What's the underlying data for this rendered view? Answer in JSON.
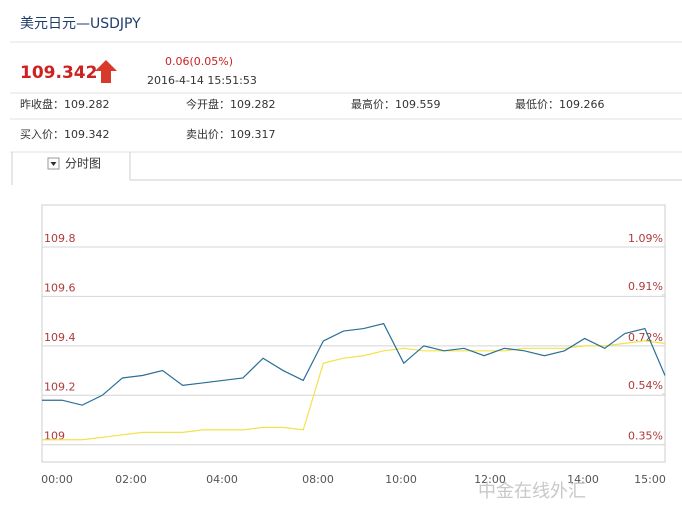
{
  "header": {
    "title": "美元日元—USDJPY",
    "price": "109.342",
    "change": "0.06(0.05%)",
    "time": "2016-4-14 15:51:53"
  },
  "stats": [
    {
      "label": "昨收盘：",
      "value": "109.282"
    },
    {
      "label": "今开盘：",
      "value": "109.282"
    },
    {
      "label": "最高价：",
      "value": "109.559"
    },
    {
      "label": "最低价：",
      "value": "109.266"
    },
    {
      "label": "买入价：",
      "value": "109.342"
    },
    {
      "label": "卖出价：",
      "value": "109.317"
    }
  ],
  "tab": "分时图",
  "watermark": "中金在线外汇",
  "chart_data": {
    "type": "line",
    "x_labels": [
      "00:00",
      "02:00",
      "04:00",
      "08:00",
      "10:00",
      "12:00",
      "14:00",
      "15:00"
    ],
    "ylim": [
      108.93,
      109.97
    ],
    "yticks": [
      109,
      109.2,
      109.4,
      109.6,
      109.8
    ],
    "y2lim": [
      0.285,
      1.247
    ],
    "y2ticks": [
      {
        "value": 1.09,
        "label": "1.09%"
      },
      {
        "value": 0.91,
        "label": "0.91%"
      },
      {
        "value": 0.72,
        "label": "0.72%"
      },
      {
        "value": 0.54,
        "label": "0.54%"
      },
      {
        "value": 0.35,
        "label": "0.35%"
      }
    ],
    "grid": true,
    "series": [
      {
        "color": "#2a6f97",
        "values": [
          109.18,
          109.18,
          109.16,
          109.2,
          109.27,
          109.28,
          109.3,
          109.24,
          109.25,
          109.26,
          109.27,
          109.35,
          109.3,
          109.26,
          109.42,
          109.46,
          109.47,
          109.49,
          109.33,
          109.4,
          109.38,
          109.39,
          109.36,
          109.39,
          109.38,
          109.36,
          109.38,
          109.43,
          109.39,
          109.45,
          109.47,
          109.28
        ]
      },
      {
        "color": "#f2e24a",
        "values": [
          109.02,
          109.02,
          109.02,
          109.03,
          109.04,
          109.05,
          109.05,
          109.05,
          109.06,
          109.06,
          109.06,
          109.07,
          109.07,
          109.06,
          109.33,
          109.35,
          109.36,
          109.38,
          109.39,
          109.38,
          109.38,
          109.38,
          109.38,
          109.38,
          109.39,
          109.39,
          109.39,
          109.4,
          109.4,
          109.41,
          109.42,
          109.41
        ]
      }
    ]
  }
}
